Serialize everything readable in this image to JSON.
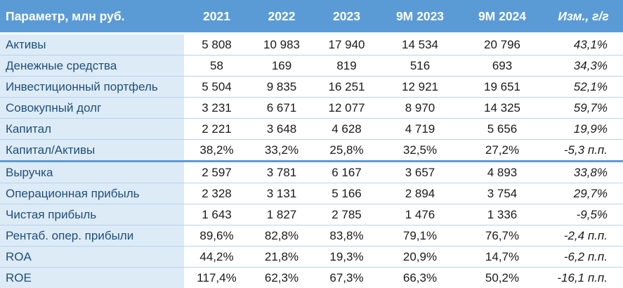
{
  "table": {
    "headers": [
      "Параметр, млн руб.",
      "2021",
      "2022",
      "2023",
      "9M 2023",
      "9M 2024",
      "Изм., г/г"
    ],
    "rows": [
      {
        "label": "Активы",
        "values": [
          "5 808",
          "10 983",
          "17 940",
          "14 534",
          "20 796"
        ],
        "change": "43,1%"
      },
      {
        "label": "Денежные средства",
        "values": [
          "58",
          "169",
          "819",
          "516",
          "693"
        ],
        "change": "34,3%"
      },
      {
        "label": "Инвестиционный портфель",
        "values": [
          "5 504",
          "9 835",
          "16 251",
          "12 921",
          "19 651"
        ],
        "change": "52,1%"
      },
      {
        "label": "Совокупный долг",
        "values": [
          "3 231",
          "6 671",
          "12 077",
          "8 970",
          "14 325"
        ],
        "change": "59,7%"
      },
      {
        "label": "Капитал",
        "values": [
          "2 221",
          "3 648",
          "4 628",
          "4 719",
          "5 656"
        ],
        "change": "19,9%"
      },
      {
        "label": "Капитал/Активы",
        "values": [
          "38,2%",
          "33,2%",
          "25,8%",
          "32,5%",
          "27,2%"
        ],
        "change": "-5,3 п.п."
      },
      {
        "label": "Выручка",
        "values": [
          "2 597",
          "3 781",
          "6 167",
          "3 657",
          "4 893"
        ],
        "change": "33,8%"
      },
      {
        "label": "Операционная прибыль",
        "values": [
          "2 328",
          "3 131",
          "5 166",
          "2 894",
          "3 754"
        ],
        "change": "29,7%"
      },
      {
        "label": "Чистая прибыль",
        "values": [
          "1 643",
          "1 827",
          "2 785",
          "1 476",
          "1 336"
        ],
        "change": "-9,5%"
      },
      {
        "label": "Рентаб. опер. прибыли",
        "values": [
          "89,6%",
          "82,8%",
          "83,8%",
          "79,1%",
          "76,7%"
        ],
        "change": "-2,4 п.п."
      },
      {
        "label": "ROA",
        "values": [
          "44,2%",
          "21,8%",
          "19,3%",
          "20,9%",
          "14,7%"
        ],
        "change": "-6,2 п.п."
      },
      {
        "label": "ROE",
        "values": [
          "117,4%",
          "62,3%",
          "67,3%",
          "66,3%",
          "50,2%"
        ],
        "change": "-16,1 п.п."
      }
    ]
  },
  "colors": {
    "header_bg": "#5b9bd5",
    "label_bg": "#ddebf7",
    "label_text": "#1f4e79"
  }
}
